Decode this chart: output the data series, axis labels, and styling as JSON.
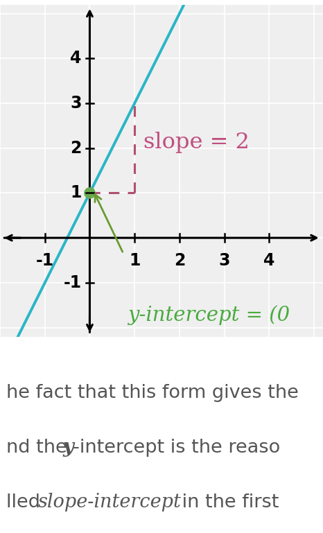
{
  "bg_color": "#ffffff",
  "graph_bg": "#efefef",
  "line_color": "#2ab5c8",
  "line_slope": 2,
  "line_intercept": 1,
  "point_x": 0,
  "point_y": 1,
  "point_color": "#6aaa4f",
  "dashed_color": "#b05070",
  "slope_label": "slope = 2",
  "slope_label_color": "#c05080",
  "intercept_label": "y-intercept = (0",
  "intercept_label_color": "#4aaa40",
  "arrow_color": "#6a9a30",
  "xlim": [
    -2.0,
    5.2
  ],
  "ylim": [
    -2.2,
    5.2
  ],
  "xticks": [
    -1,
    1,
    2,
    3,
    4
  ],
  "yticks": [
    -1,
    1,
    2,
    3,
    4
  ],
  "tick_label_fontsize": 17,
  "slope_fontsize": 23,
  "intercept_fontsize": 21,
  "text_line1": "he fact that this form gives the",
  "text_line2_a": "nd the ",
  "text_line2_b": "y",
  "text_line2_c": "-intercept is the reaso",
  "text_line3_a": "lled ",
  "text_line3_b": "slope-intercept",
  "text_line3_c": " in the first",
  "text_color": "#555555",
  "text_fontsize": 19.5
}
